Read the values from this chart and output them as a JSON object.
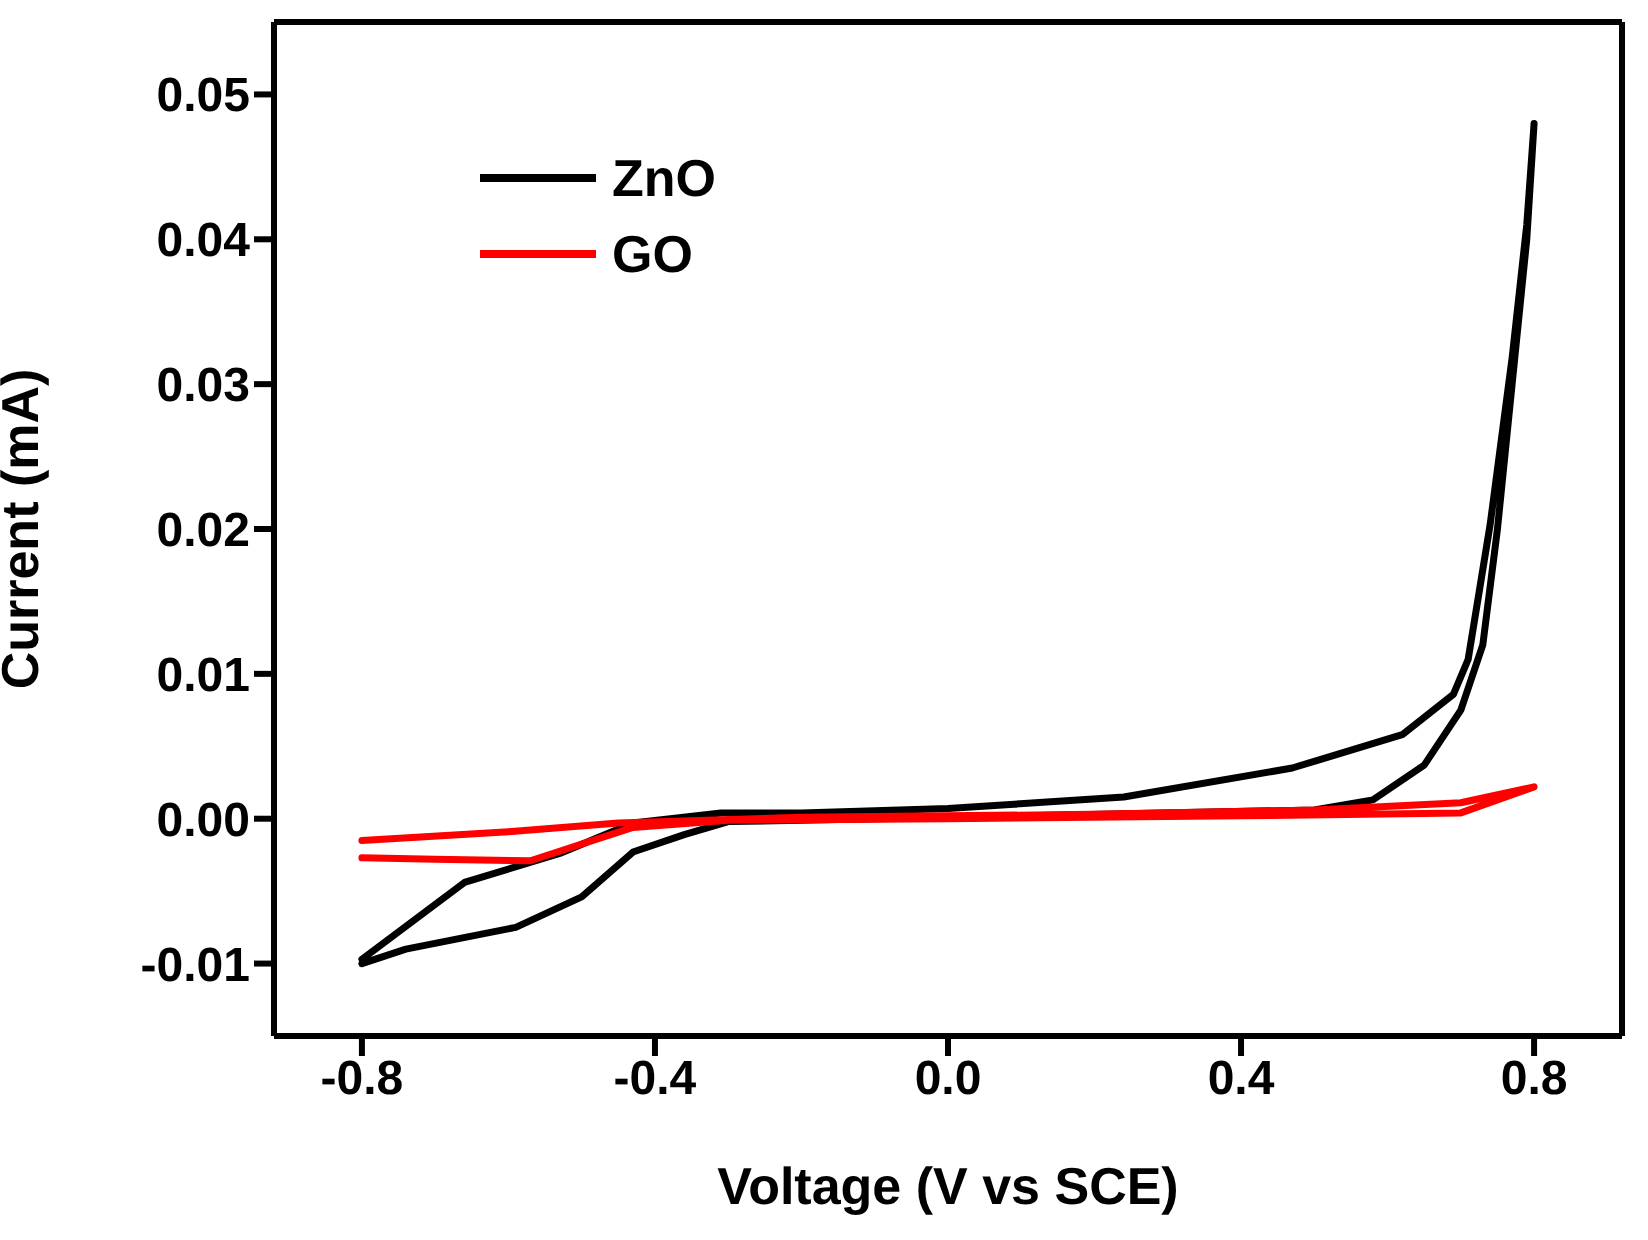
{
  "chart_data": {
    "type": "line",
    "xlabel": "Voltage (V vs SCE)",
    "ylabel": "Current (mA)",
    "xlim": [
      -0.92,
      0.92
    ],
    "xticks": [
      -0.8,
      -0.4,
      {
        "value": 0,
        "label": "0.0"
      },
      0.4,
      0.8
    ],
    "ylim": [
      -0.015,
      0.055
    ],
    "yticks": [
      -0.01,
      {
        "value": 0,
        "label": "0.00"
      },
      0.01,
      0.02,
      0.03,
      0.04,
      0.05
    ],
    "grid": false,
    "legend": "top left",
    "marker": "none",
    "line_style": "solid",
    "series": [
      {
        "name": "ZnO",
        "color": "#000000",
        "x": [
          -0.8,
          -0.66,
          -0.53,
          -0.43,
          -0.31,
          -0.2,
          0.0,
          0.24,
          0.47,
          0.62,
          0.69,
          0.71,
          0.74,
          0.77,
          0.79,
          0.8,
          0.79,
          0.77,
          0.75,
          0.73,
          0.7,
          0.65,
          0.58,
          0.5,
          -0.3,
          -0.36,
          -0.43,
          -0.5,
          -0.59,
          -0.74,
          -0.8
        ],
        "values": [
          -0.0097,
          -0.0044,
          -0.0024,
          -0.0003,
          0.0004,
          0.0004,
          0.0007,
          0.0015,
          0.0035,
          0.0058,
          0.0086,
          0.011,
          0.0203,
          0.0318,
          0.041,
          0.048,
          0.04,
          0.03,
          0.02,
          0.012,
          0.0075,
          0.0037,
          0.0013,
          0.0006,
          -0.0002,
          -0.0011,
          -0.0023,
          -0.0054,
          -0.0075,
          -0.009,
          -0.01
        ]
      },
      {
        "name": "GO",
        "color": "#ff0000",
        "x": [
          -0.8,
          -0.6,
          -0.45,
          -0.2,
          0.2,
          0.5,
          0.7,
          0.8,
          0.7,
          0.4,
          0.0,
          -0.3,
          -0.43,
          -0.57,
          -0.7,
          -0.8
        ],
        "values": [
          -0.0015,
          -0.0009,
          -0.0003,
          0.0001,
          0.0003,
          0.0006,
          0.0011,
          0.0022,
          0.0004,
          0.0002,
          0.0,
          -0.0001,
          -0.0006,
          -0.0029,
          -0.0028,
          -0.0027
        ]
      }
    ]
  }
}
